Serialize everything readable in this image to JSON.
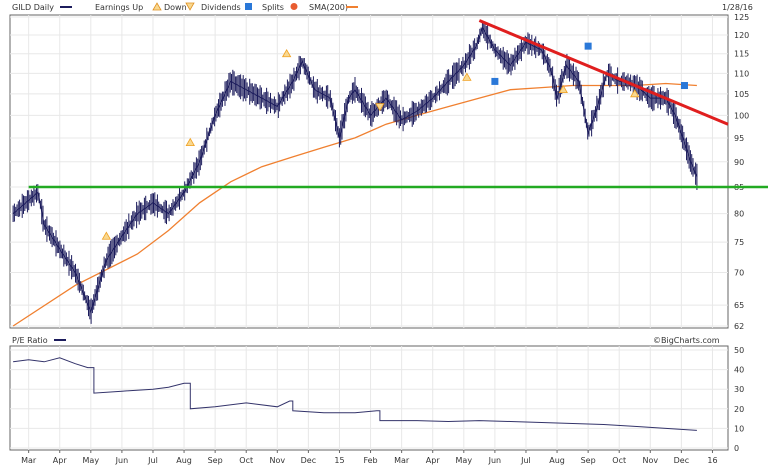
{
  "header": {
    "ticker": "GILD Daily",
    "legend_earnings_up": "Earnings Up",
    "legend_earnings_down": "Down",
    "legend_dividends": "Dividends",
    "legend_splits": "Splits",
    "legend_sma": "SMA(200)",
    "date": "1/28/16"
  },
  "lower_panel": {
    "title": "P/E Ratio"
  },
  "watermark": "©BigCharts.com",
  "colors": {
    "price": "#1c1c5c",
    "sma": "#f08030",
    "trendline": "#e01e1e",
    "support": "#22aa22",
    "earnings_marker": "#f0a020",
    "dividend_marker": "#2a78d8",
    "split_marker": "#e85c30",
    "pe_line": "#33336a",
    "grid": "#e8e8e8"
  },
  "chart_data": [
    {
      "type": "line",
      "title": "GILD Daily",
      "x_tick_labels": [
        "Mar",
        "Apr",
        "May",
        "Jun",
        "Jul",
        "Aug",
        "Sep",
        "Oct",
        "Nov",
        "Dec",
        "15",
        "Feb",
        "Mar",
        "Apr",
        "May",
        "Jun",
        "Jul",
        "Aug",
        "Sep",
        "Oct",
        "Nov",
        "Dec",
        "16"
      ],
      "y_tick_labels": [
        "125",
        "120",
        "115",
        "110",
        "105",
        "100",
        "95",
        "90",
        "85",
        "80",
        "75",
        "70",
        "65",
        "62"
      ],
      "ylim": [
        62,
        125
      ],
      "y_scale": "log",
      "grid": true,
      "series": [
        {
          "name": "GILD Daily",
          "values": [
            {
              "x": 0,
              "y": 80
            },
            {
              "x": 0.8,
              "y": 84
            },
            {
              "x": 1.0,
              "y": 78
            },
            {
              "x": 1.6,
              "y": 73
            },
            {
              "x": 2.0,
              "y": 70
            },
            {
              "x": 2.5,
              "y": 64
            },
            {
              "x": 3.0,
              "y": 72
            },
            {
              "x": 3.5,
              "y": 76
            },
            {
              "x": 4.0,
              "y": 80
            },
            {
              "x": 4.5,
              "y": 82
            },
            {
              "x": 5.0,
              "y": 80
            },
            {
              "x": 5.5,
              "y": 84
            },
            {
              "x": 6.0,
              "y": 90
            },
            {
              "x": 6.5,
              "y": 100
            },
            {
              "x": 7.0,
              "y": 108
            },
            {
              "x": 7.5,
              "y": 106
            },
            {
              "x": 8.0,
              "y": 104
            },
            {
              "x": 8.5,
              "y": 102
            },
            {
              "x": 9.0,
              "y": 108
            },
            {
              "x": 9.3,
              "y": 113
            },
            {
              "x": 9.7,
              "y": 106
            },
            {
              "x": 10.2,
              "y": 104
            },
            {
              "x": 10.5,
              "y": 95
            },
            {
              "x": 10.8,
              "y": 104
            },
            {
              "x": 11.0,
              "y": 106
            },
            {
              "x": 11.5,
              "y": 100
            },
            {
              "x": 12.0,
              "y": 104
            },
            {
              "x": 12.5,
              "y": 99
            },
            {
              "x": 13.0,
              "y": 101
            },
            {
              "x": 13.5,
              "y": 104
            },
            {
              "x": 14.0,
              "y": 108
            },
            {
              "x": 14.5,
              "y": 112
            },
            {
              "x": 14.9,
              "y": 117
            },
            {
              "x": 15.1,
              "y": 122
            },
            {
              "x": 15.5,
              "y": 116
            },
            {
              "x": 16.0,
              "y": 112
            },
            {
              "x": 16.5,
              "y": 118
            },
            {
              "x": 17.0,
              "y": 116
            },
            {
              "x": 17.3,
              "y": 111
            },
            {
              "x": 17.5,
              "y": 104
            },
            {
              "x": 17.8,
              "y": 112
            },
            {
              "x": 18.2,
              "y": 108
            },
            {
              "x": 18.5,
              "y": 96
            },
            {
              "x": 18.8,
              "y": 102
            },
            {
              "x": 19.1,
              "y": 110
            },
            {
              "x": 19.5,
              "y": 108
            },
            {
              "x": 19.8,
              "y": 108
            },
            {
              "x": 20.2,
              "y": 106
            },
            {
              "x": 20.5,
              "y": 104
            },
            {
              "x": 21.0,
              "y": 104
            },
            {
              "x": 21.3,
              "y": 100
            },
            {
              "x": 21.6,
              "y": 94
            },
            {
              "x": 21.8,
              "y": 90
            },
            {
              "x": 22.0,
              "y": 87
            }
          ]
        },
        {
          "name": "SMA(200)",
          "values": [
            {
              "x": 0,
              "y": 62
            },
            {
              "x": 2,
              "y": 68
            },
            {
              "x": 4,
              "y": 73
            },
            {
              "x": 5,
              "y": 77
            },
            {
              "x": 6,
              "y": 82
            },
            {
              "x": 7,
              "y": 86
            },
            {
              "x": 8,
              "y": 89
            },
            {
              "x": 9,
              "y": 91
            },
            {
              "x": 10,
              "y": 93
            },
            {
              "x": 11,
              "y": 95
            },
            {
              "x": 12,
              "y": 98
            },
            {
              "x": 13,
              "y": 100
            },
            {
              "x": 14,
              "y": 102
            },
            {
              "x": 15,
              "y": 104
            },
            {
              "x": 16,
              "y": 106
            },
            {
              "x": 17,
              "y": 106.5
            },
            {
              "x": 18,
              "y": 107
            },
            {
              "x": 19,
              "y": 107
            },
            {
              "x": 20,
              "y": 107
            },
            {
              "x": 21,
              "y": 107.5
            },
            {
              "x": 22,
              "y": 107
            }
          ]
        }
      ],
      "trendline": [
        {
          "x": 15.0,
          "y": 124
        },
        {
          "x": 23.0,
          "y": 98
        }
      ],
      "support_line": [
        {
          "x": 0.5,
          "y": 85
        },
        {
          "x": 23.0,
          "y": 85
        }
      ],
      "markers": [
        {
          "kind": "earnings-up",
          "x": 3.0,
          "y": 76
        },
        {
          "kind": "earnings-up",
          "x": 5.7,
          "y": 94
        },
        {
          "kind": "earnings-up",
          "x": 8.8,
          "y": 115
        },
        {
          "kind": "earnings-down",
          "x": 11.8,
          "y": 102
        },
        {
          "kind": "earnings-up",
          "x": 14.6,
          "y": 109
        },
        {
          "kind": "earnings-up",
          "x": 17.7,
          "y": 106
        },
        {
          "kind": "earnings-up",
          "x": 20.0,
          "y": 105
        },
        {
          "kind": "dividend",
          "x": 15.5,
          "y": 108
        },
        {
          "kind": "dividend",
          "x": 18.5,
          "y": 117
        },
        {
          "kind": "dividend",
          "x": 21.6,
          "y": 107
        }
      ]
    },
    {
      "type": "line",
      "title": "P/E Ratio",
      "y_tick_labels": [
        "50",
        "40",
        "30",
        "20",
        "10",
        "0"
      ],
      "ylim": [
        0,
        50
      ],
      "grid": true,
      "series": [
        {
          "name": "P/E Ratio",
          "values": [
            {
              "x": 0,
              "y": 44
            },
            {
              "x": 0.5,
              "y": 45
            },
            {
              "x": 1.0,
              "y": 44
            },
            {
              "x": 1.5,
              "y": 46
            },
            {
              "x": 2.0,
              "y": 43
            },
            {
              "x": 2.4,
              "y": 41
            },
            {
              "x": 2.6,
              "y": 28
            },
            {
              "x": 3.5,
              "y": 29
            },
            {
              "x": 4.5,
              "y": 30
            },
            {
              "x": 5.0,
              "y": 31
            },
            {
              "x": 5.5,
              "y": 33
            },
            {
              "x": 5.7,
              "y": 20
            },
            {
              "x": 6.5,
              "y": 21
            },
            {
              "x": 7.5,
              "y": 23
            },
            {
              "x": 8.5,
              "y": 21
            },
            {
              "x": 8.9,
              "y": 24
            },
            {
              "x": 9.0,
              "y": 19
            },
            {
              "x": 10.0,
              "y": 18
            },
            {
              "x": 11.0,
              "y": 18
            },
            {
              "x": 11.7,
              "y": 19
            },
            {
              "x": 11.8,
              "y": 14
            },
            {
              "x": 13.0,
              "y": 14
            },
            {
              "x": 14.0,
              "y": 13.5
            },
            {
              "x": 15.0,
              "y": 14
            },
            {
              "x": 16.0,
              "y": 13.5
            },
            {
              "x": 17.0,
              "y": 13
            },
            {
              "x": 18.0,
              "y": 12.5
            },
            {
              "x": 19.0,
              "y": 12
            },
            {
              "x": 20.0,
              "y": 11
            },
            {
              "x": 21.0,
              "y": 10
            },
            {
              "x": 22.0,
              "y": 9
            }
          ]
        }
      ]
    }
  ]
}
